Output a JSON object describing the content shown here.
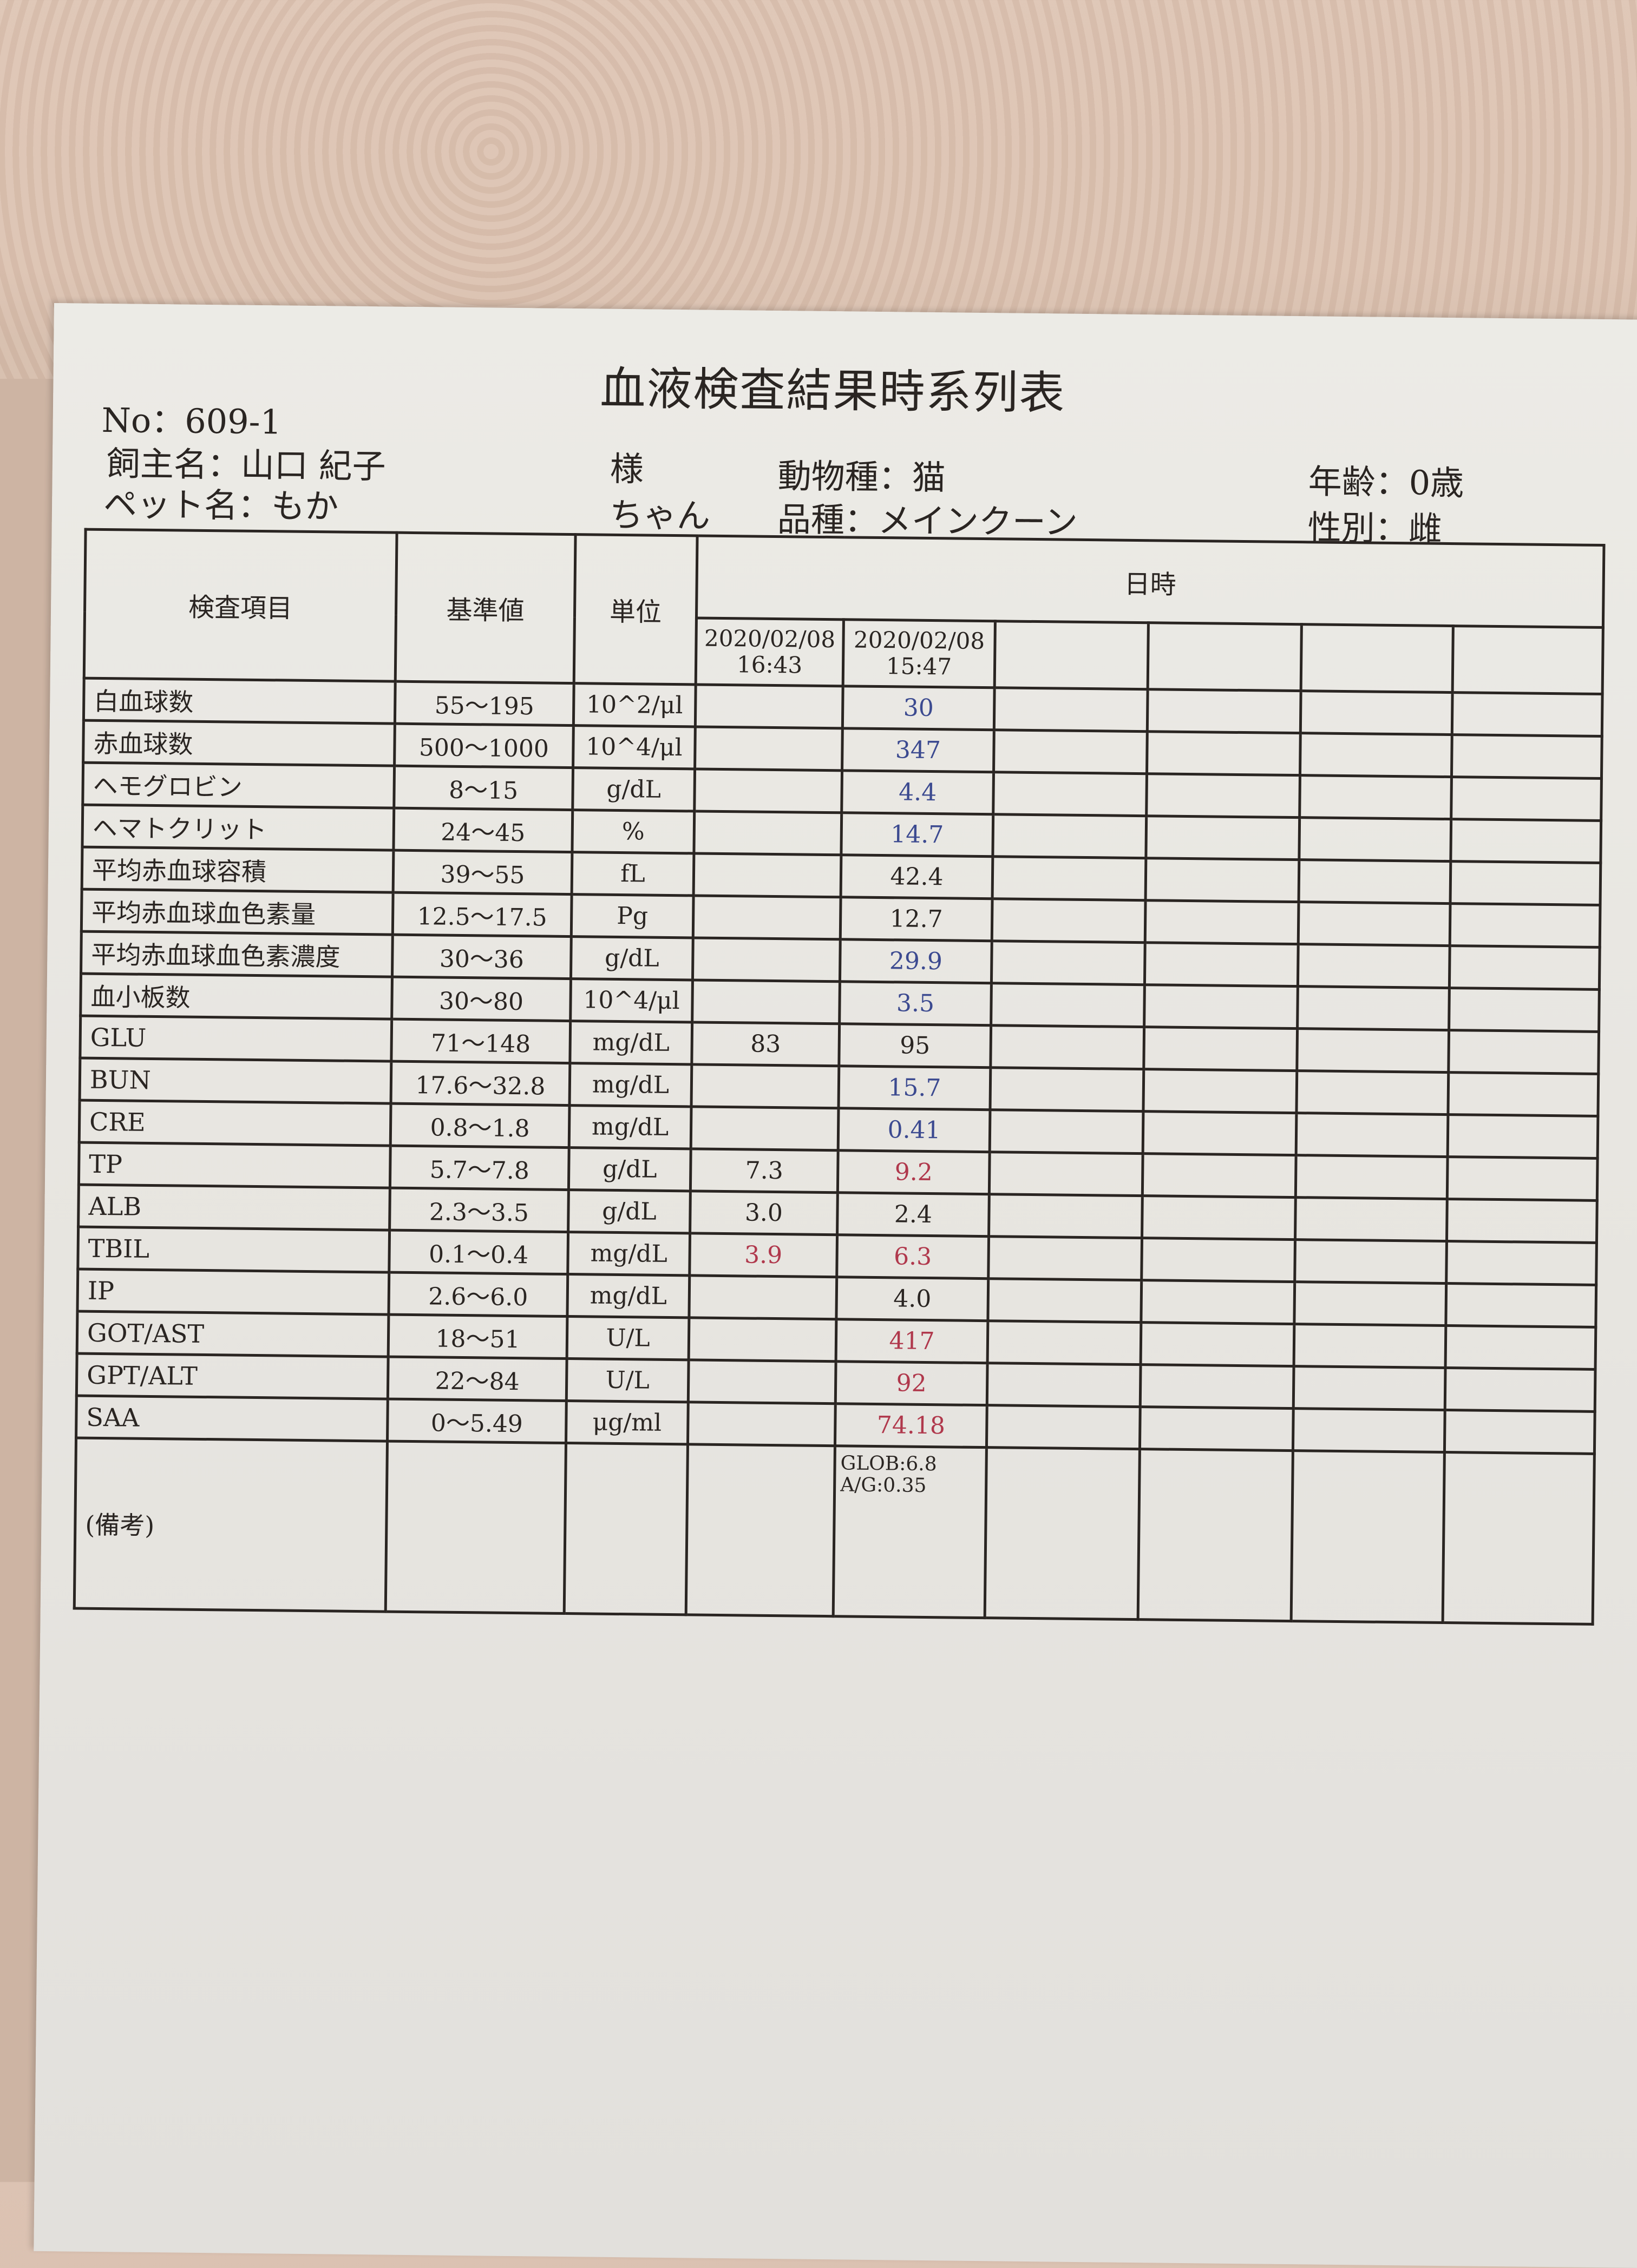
{
  "title": "血液検査結果時系列表",
  "header": {
    "no": "No：609-1",
    "owner": "飼主名：山口 紀子",
    "owner_suffix": "様",
    "pet": "ペット名：もか",
    "pet_suffix": "ちゃん",
    "species": "動物種：猫",
    "breed": "品種：メインクーン",
    "age": "年齢：0歳",
    "sex": "性別：雌"
  },
  "table": {
    "columns": {
      "item": "検査項目",
      "ref": "基準値",
      "unit": "単位",
      "datetime": "日時"
    },
    "dates": [
      "2020/02/08 16:43",
      "2020/02/08 15:47"
    ],
    "rows": [
      {
        "item": "白血球数",
        "ref": "55～195",
        "unit": "10^2/μl",
        "d1": "",
        "d2": "30",
        "c2": "blue"
      },
      {
        "item": "赤血球数",
        "ref": "500～1000",
        "unit": "10^4/μl",
        "d1": "",
        "d2": "347",
        "c2": "blue"
      },
      {
        "item": "ヘモグロビン",
        "ref": "8～15",
        "unit": "g/dL",
        "d1": "",
        "d2": "4.4",
        "c2": "blue"
      },
      {
        "item": "ヘマトクリット",
        "ref": "24～45",
        "unit": "%",
        "d1": "",
        "d2": "14.7",
        "c2": "blue"
      },
      {
        "item": "平均赤血球容積",
        "ref": "39～55",
        "unit": "fL",
        "d1": "",
        "d2": "42.4",
        "c2": ""
      },
      {
        "item": "平均赤血球血色素量",
        "ref": "12.5～17.5",
        "unit": "Pg",
        "d1": "",
        "d2": "12.7",
        "c2": ""
      },
      {
        "item": "平均赤血球血色素濃度",
        "ref": "30～36",
        "unit": "g/dL",
        "d1": "",
        "d2": "29.9",
        "c2": "blue"
      },
      {
        "item": "血小板数",
        "ref": "30～80",
        "unit": "10^4/μl",
        "d1": "",
        "d2": "3.5",
        "c2": "blue"
      },
      {
        "item": "GLU",
        "ref": "71～148",
        "unit": "mg/dL",
        "d1": "83",
        "d2": "95",
        "c2": ""
      },
      {
        "item": "BUN",
        "ref": "17.6～32.8",
        "unit": "mg/dL",
        "d1": "",
        "d2": "15.7",
        "c2": "blue"
      },
      {
        "item": "CRE",
        "ref": "0.8～1.8",
        "unit": "mg/dL",
        "d1": "",
        "d2": "0.41",
        "c2": "blue"
      },
      {
        "item": "TP",
        "ref": "5.7～7.8",
        "unit": "g/dL",
        "d1": "7.3",
        "d2": "9.2",
        "c2": "red"
      },
      {
        "item": "ALB",
        "ref": "2.3～3.5",
        "unit": "g/dL",
        "d1": "3.0",
        "d2": "2.4",
        "c2": ""
      },
      {
        "item": "TBIL",
        "ref": "0.1～0.4",
        "unit": "mg/dL",
        "d1": "3.9",
        "c1": "red",
        "d2": "6.3",
        "c2": "red"
      },
      {
        "item": "IP",
        "ref": "2.6～6.0",
        "unit": "mg/dL",
        "d1": "",
        "d2": "4.0",
        "c2": ""
      },
      {
        "item": "GOT/AST",
        "ref": "18～51",
        "unit": "U/L",
        "d1": "",
        "d2": "417",
        "c2": "red"
      },
      {
        "item": "GPT/ALT",
        "ref": "22～84",
        "unit": "U/L",
        "d1": "",
        "d2": "92",
        "c2": "red"
      },
      {
        "item": "SAA",
        "ref": "0～5.49",
        "unit": "μg/ml",
        "d1": "",
        "d2": "74.18",
        "c2": "red"
      }
    ],
    "remarks_label": "(備考)",
    "remarks_d2": [
      "GLOB:6.8",
      "A/G:0.35"
    ]
  },
  "colors": {
    "low": "#3c4a90",
    "high": "#b0384c"
  }
}
